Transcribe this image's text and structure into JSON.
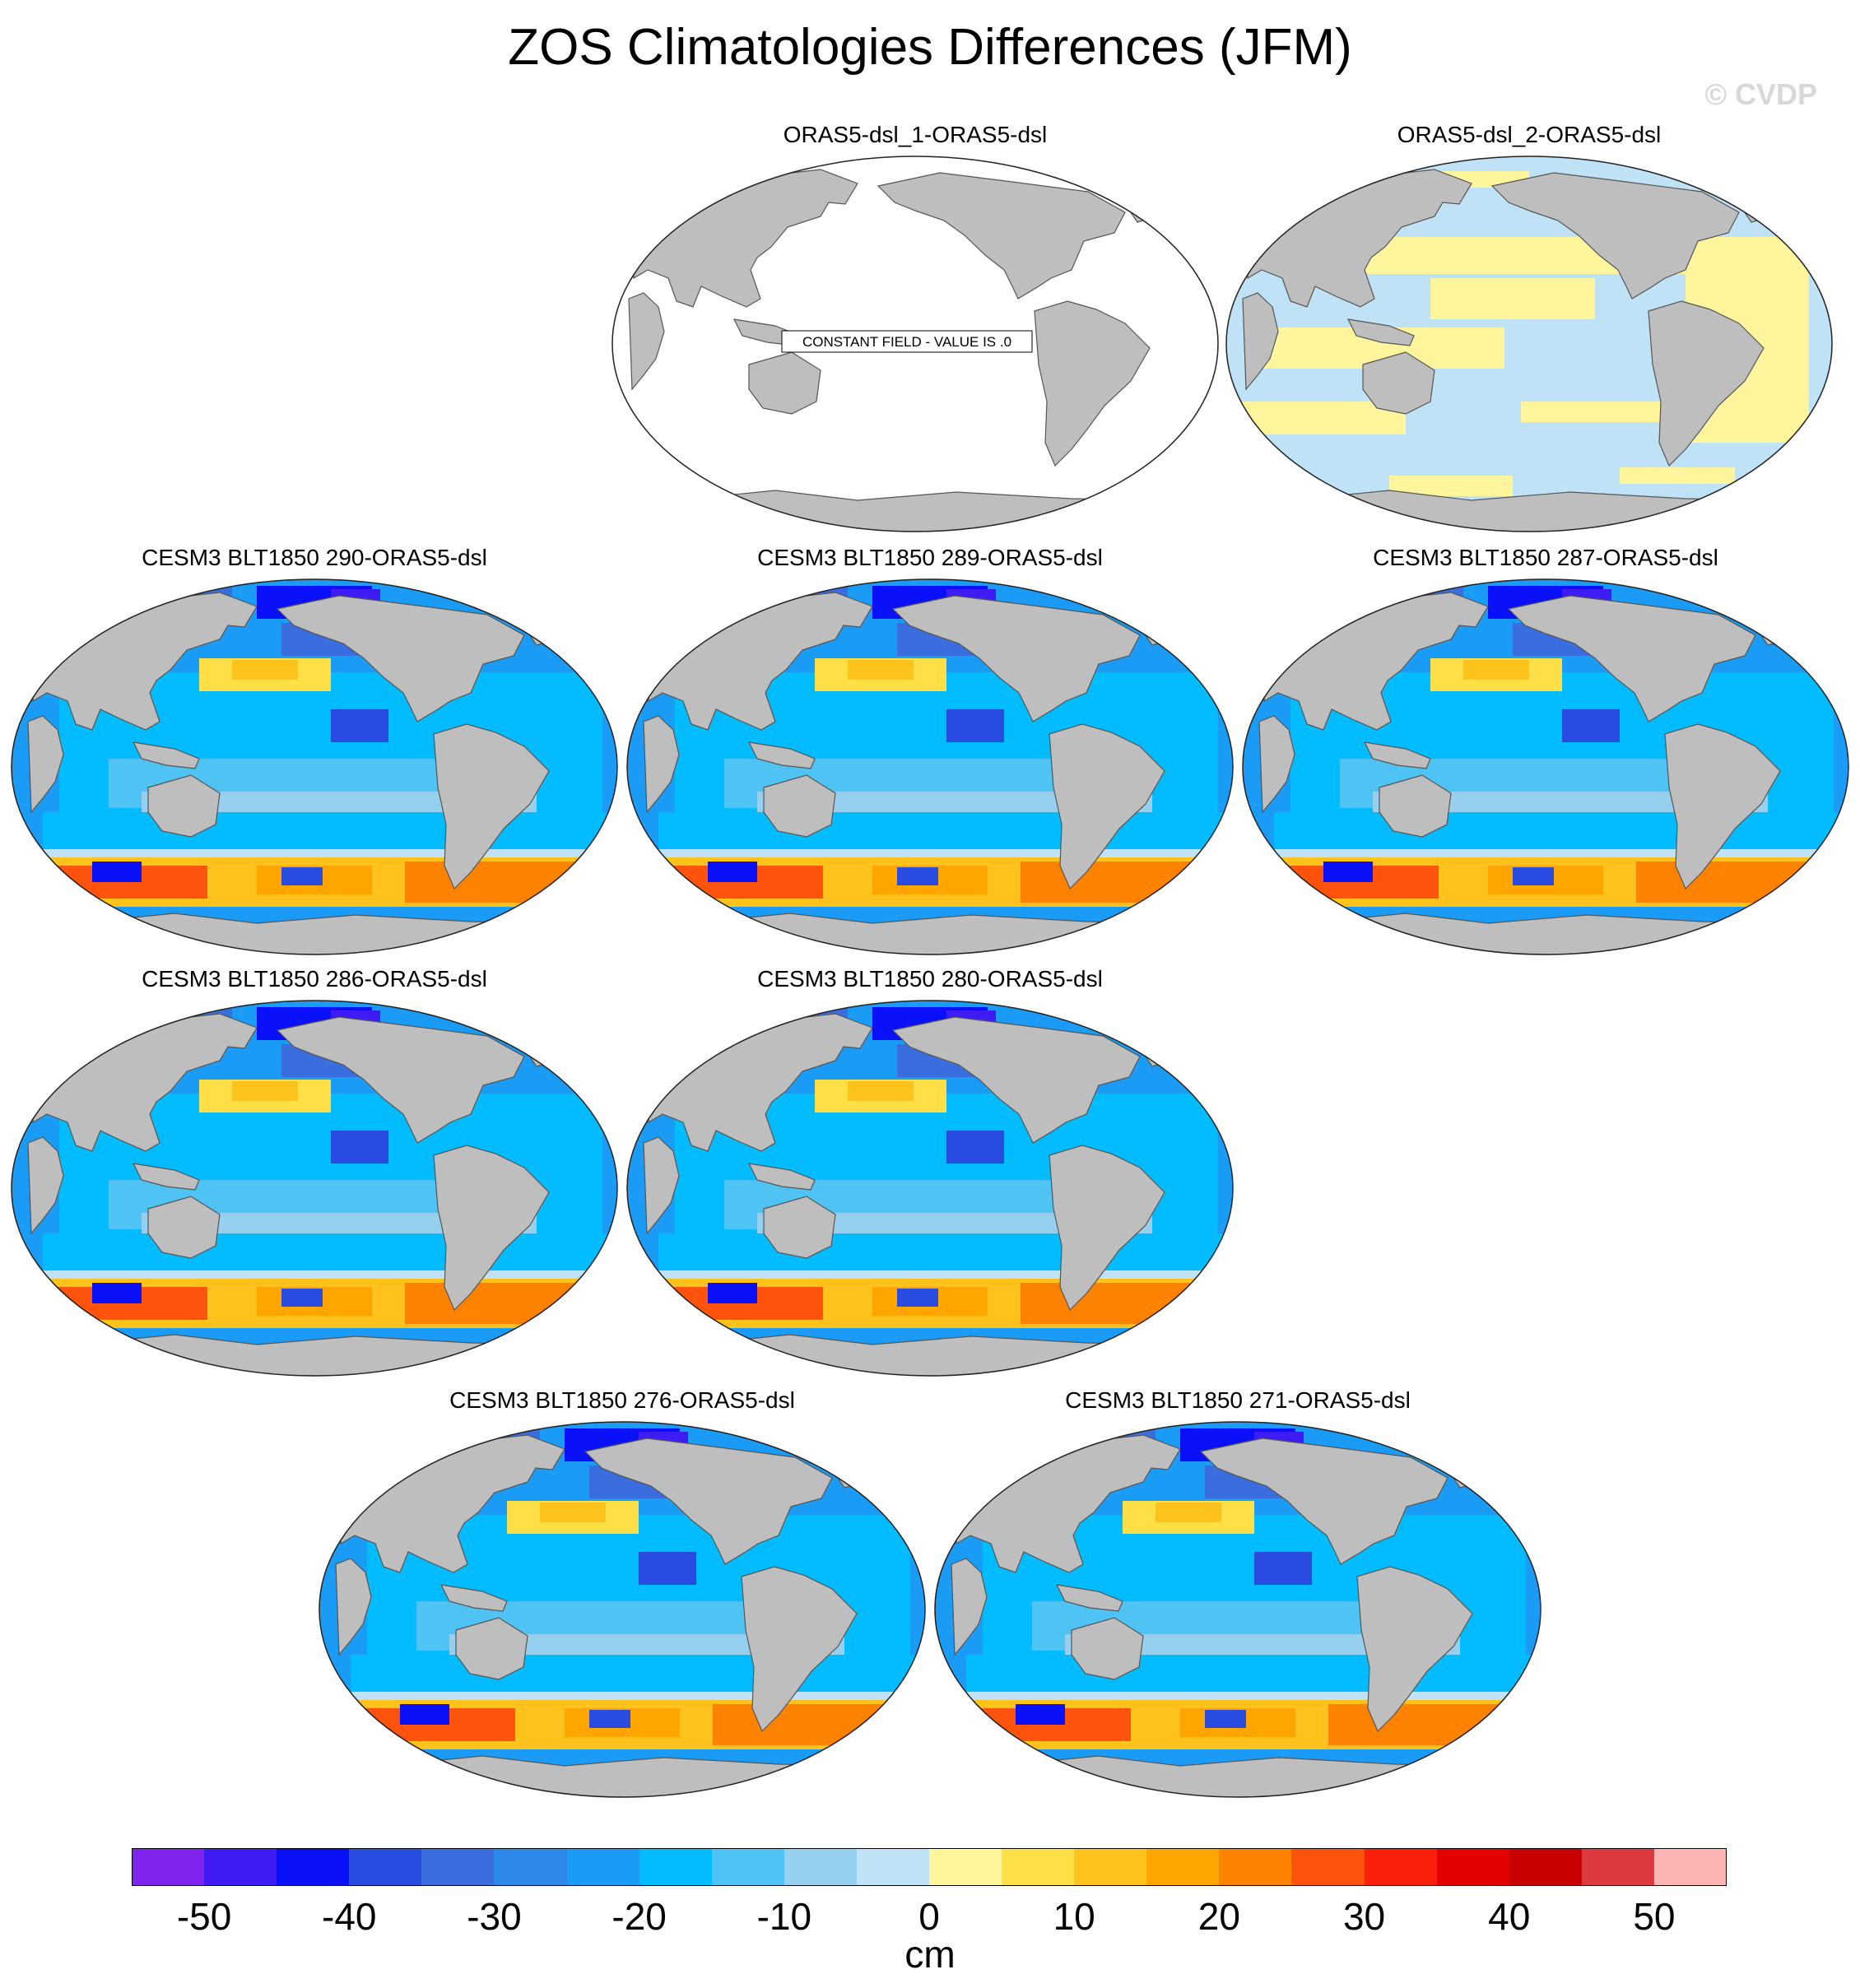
{
  "title": "ZOS Climatologies Differences (JFM)",
  "watermark": "© CVDP",
  "panels": [
    {
      "id": "p1",
      "title": "ORAS5-dsl_1-ORAS5-dsl",
      "type": "constant",
      "constant_label": "CONSTANT FIELD - VALUE IS .0"
    },
    {
      "id": "p2",
      "title": "ORAS5-dsl_2-ORAS5-dsl",
      "type": "small"
    },
    {
      "id": "p3",
      "title": "CESM3 BLT1850 290-ORAS5-dsl",
      "type": "model"
    },
    {
      "id": "p4",
      "title": "CESM3 BLT1850 289-ORAS5-dsl",
      "type": "model"
    },
    {
      "id": "p5",
      "title": "CESM3 BLT1850 287-ORAS5-dsl",
      "type": "model"
    },
    {
      "id": "p6",
      "title": "CESM3 BLT1850 286-ORAS5-dsl",
      "type": "model"
    },
    {
      "id": "p7",
      "title": "CESM3 BLT1850 280-ORAS5-dsl",
      "type": "model"
    },
    {
      "id": "p8",
      "title": "CESM3 BLT1850 276-ORAS5-dsl",
      "type": "model"
    },
    {
      "id": "p9",
      "title": "CESM3 BLT1850 271-ORAS5-dsl",
      "type": "model"
    }
  ],
  "colorbar": {
    "levels": [
      -50,
      -45,
      -40,
      -35,
      -30,
      -25,
      -20,
      -15,
      -10,
      -5,
      0,
      5,
      10,
      15,
      20,
      25,
      30,
      35,
      40,
      45,
      50
    ],
    "colors": [
      "#7f24ee",
      "#3f1cf4",
      "#0a10f8",
      "#2a4be0",
      "#3a6ede",
      "#2d8ae8",
      "#1a9cf6",
      "#02bcff",
      "#4fc3f3",
      "#97cfee",
      "#c0e2f6",
      "#fff59d",
      "#fedf47",
      "#fdc21c",
      "#fea500",
      "#fc8200",
      "#fd530c",
      "#fa200c",
      "#e40102",
      "#c80103",
      "#dd3a3f",
      "#fbb3b3"
    ],
    "tick_labels": [
      "-50",
      "-40",
      "-30",
      "-20",
      "-10",
      "0",
      "10",
      "20",
      "30",
      "40",
      "50"
    ],
    "units": "cm"
  },
  "colors": {
    "land": "#bebebe",
    "coast": "#555555",
    "background": "#ffffff"
  }
}
